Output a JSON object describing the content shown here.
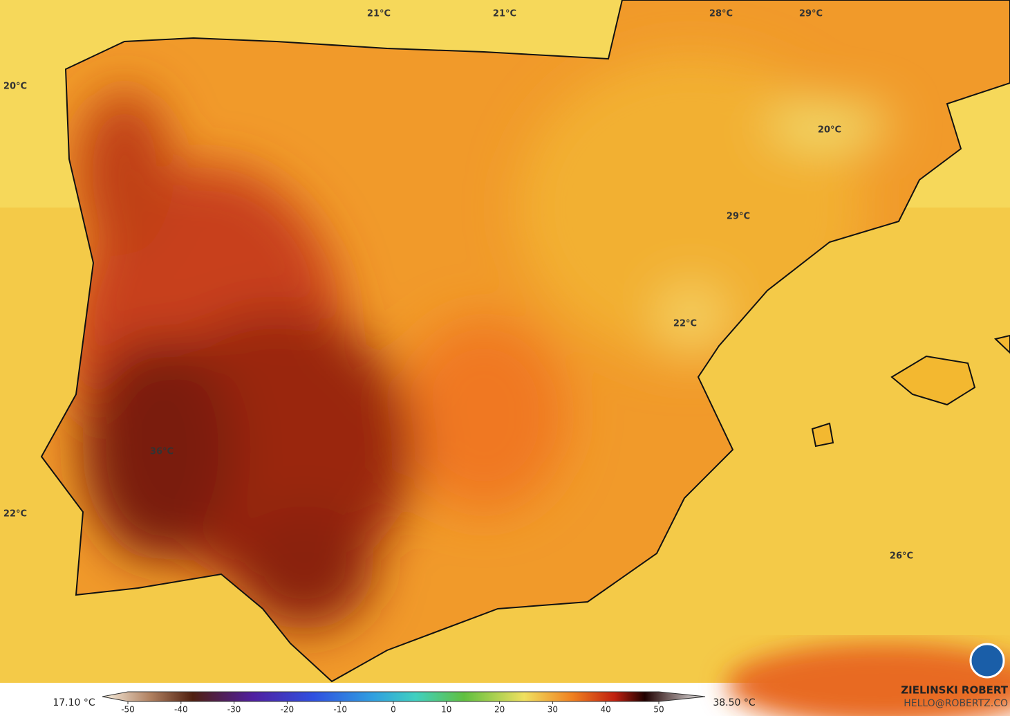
{
  "map": {
    "labels": [
      "21°C",
      "21°C",
      "28°C",
      "29°C",
      "20°C",
      "20°C",
      "29°C",
      "22°C",
      "36°C",
      "22°C",
      "26°C"
    ],
    "colorbar": {
      "min_label": "17.10 °C",
      "max_label": "38.50 °C",
      "ticks": [
        -50,
        -40,
        -30,
        -20,
        -10,
        0,
        10,
        20,
        30,
        40,
        50
      ],
      "range": [
        -50,
        50
      ]
    },
    "credit": {
      "name": "ZIELINSKI ROBERT",
      "contact": "HELLO@ROBERTZ.CO"
    }
  }
}
